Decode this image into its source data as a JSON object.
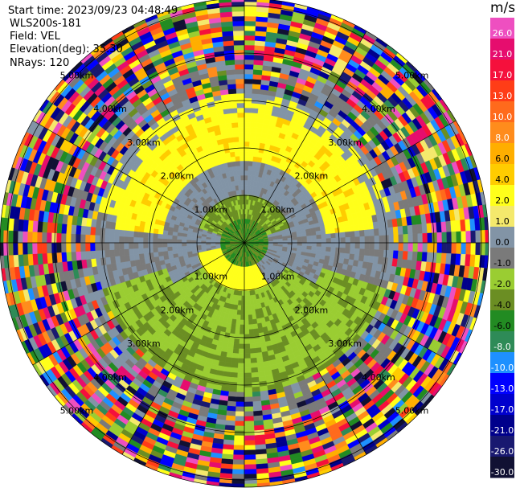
{
  "header": {
    "start_time": "Start time: 2023/09/23 04:48:49",
    "site": "WLS200s-181",
    "field": "Field: VEL",
    "elevation": "Elevation(deg): 35.30",
    "nrays": "NRays: 120"
  },
  "colorbar": {
    "unit": "m/s",
    "ticks": [
      "26.0",
      "21.0",
      "17.0",
      "13.0",
      "10.0",
      "8.0",
      "6.0",
      "4.0",
      "2.0",
      "1.0",
      "0.0",
      "-1.0",
      "-2.0",
      "-4.0",
      "-6.0",
      "-8.0",
      "-10.0",
      "-13.0",
      "-17.0",
      "-21.0",
      "-26.0",
      "-30.0"
    ],
    "colors": [
      "#ee4fc0",
      "#e60d6e",
      "#f5103c",
      "#ff3d17",
      "#ff6a1c",
      "#ff8c1c",
      "#ffae00",
      "#ffcc00",
      "#ffff1a",
      "#f4e96c",
      "#8294a6",
      "#7a7a7a",
      "#9acd32",
      "#6b8e23",
      "#228b22",
      "#2e8b57",
      "#1e90ff",
      "#0000ff",
      "#0000cd",
      "#00008b",
      "#191970",
      "#111133"
    ]
  },
  "rings": {
    "labels": [
      "1.00km",
      "2.00km",
      "3.00km",
      "4.00km",
      "5.00km"
    ]
  }
}
